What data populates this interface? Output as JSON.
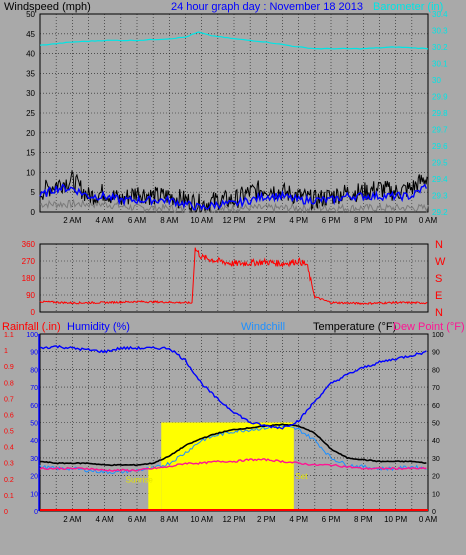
{
  "colors": {
    "background": "#a9a9a9",
    "plot_bg": "#a9a9a9",
    "grid": "#1a1a1a",
    "wind_speed": "#000000",
    "wind_avg": "#0000ff",
    "wind_gust_floor": "#7a7a7a",
    "barometer": "#00e5e5",
    "wind_dir": "#ff0000",
    "rain_axis": "#ff0000",
    "humidity": "#0000ff",
    "windchill": "#1e90ff",
    "temperature": "#000000",
    "dewpoint": "#ff1493",
    "sun_bar": "#ffff00",
    "sun_text": "#e6e600",
    "rain_line": "#ff0000"
  },
  "chart_data": [
    {
      "type": "line",
      "title": "24 hour graph day : November 18 2013",
      "left_axis_label": "Windspeed (mph)",
      "right_axis_label": "Barometer (in)",
      "left_ylim": [
        0,
        50
      ],
      "left_ticks": [
        "0",
        "5",
        "10",
        "15",
        "20",
        "25",
        "30",
        "35",
        "40",
        "45",
        "50"
      ],
      "right_ylim": [
        29.2,
        30.4
      ],
      "right_ticks": [
        "29.2",
        "29.3",
        "29.4",
        "29.5",
        "29.6",
        "29.7",
        "29.8",
        "29.9",
        "30",
        "30.1",
        "30.2",
        "30.3",
        "30.4"
      ],
      "x_tick_labels": [
        "2 AM",
        "4 AM",
        "6 AM",
        "8 AM",
        "10 AM",
        "12 PM",
        "2 PM",
        "4 PM",
        "6 PM",
        "8 PM",
        "10 PM",
        "0 AM"
      ],
      "x_hours_range": [
        0,
        24
      ],
      "series": [
        {
          "key": "wind_speed",
          "x": [
            0,
            1,
            2,
            3,
            4,
            5,
            6,
            7,
            8,
            9,
            10,
            11,
            12,
            13,
            14,
            15,
            16,
            17,
            18,
            19,
            20,
            21,
            22,
            23,
            24
          ],
          "values": [
            5,
            7,
            8,
            4,
            5,
            3,
            5,
            4,
            4,
            3,
            2,
            3,
            3,
            5,
            6,
            5,
            4,
            3,
            4,
            5,
            5,
            6,
            5,
            6,
            9
          ]
        },
        {
          "key": "wind_avg",
          "x": [
            0,
            1,
            2,
            3,
            4,
            5,
            6,
            7,
            8,
            9,
            10,
            11,
            12,
            13,
            14,
            15,
            16,
            17,
            18,
            19,
            20,
            21,
            22,
            23,
            24
          ],
          "values": [
            4,
            6,
            6,
            4,
            4,
            3,
            3,
            3,
            3,
            2,
            1,
            2,
            2,
            3,
            4,
            4,
            3,
            3,
            3,
            4,
            4,
            4,
            4,
            4,
            7
          ]
        },
        {
          "key": "wind_gust_floor",
          "x": [
            0,
            2,
            4,
            6,
            8,
            10,
            12,
            14,
            16,
            18,
            20,
            22,
            24
          ],
          "values": [
            2,
            2,
            2,
            1,
            1,
            0,
            1,
            1,
            1,
            1,
            1,
            1,
            1
          ]
        },
        {
          "key": "barometer",
          "x": [
            0,
            2,
            4,
            6,
            8,
            9,
            9.8,
            10.5,
            12,
            14,
            16,
            17,
            18,
            20,
            22,
            24
          ],
          "values": [
            30.21,
            30.23,
            30.24,
            30.24,
            30.25,
            30.26,
            30.29,
            30.27,
            30.25,
            30.23,
            30.2,
            30.19,
            30.19,
            30.19,
            30.2,
            30.19
          ]
        }
      ]
    },
    {
      "type": "scatter",
      "left_ylim": [
        0,
        360
      ],
      "left_ticks": [
        "0",
        "90",
        "180",
        "270",
        "360"
      ],
      "right_ticks": [
        "N",
        "E",
        "S",
        "W",
        "N"
      ],
      "x_tick_labels": [
        "2 AM",
        "4 AM",
        "6 AM",
        "8 AM",
        "10 AM",
        "12 PM",
        "2 PM",
        "4 PM",
        "6 PM",
        "8 PM",
        "10 PM",
        "0 AM"
      ],
      "series": [
        {
          "key": "wind_dir",
          "x": [
            0,
            2,
            4,
            6,
            8,
            9.4,
            9.6,
            10,
            11,
            12,
            13,
            14,
            15,
            16,
            16.5,
            17,
            18,
            20,
            22,
            24
          ],
          "values": [
            55,
            48,
            50,
            55,
            52,
            48,
            335,
            290,
            270,
            255,
            260,
            265,
            255,
            270,
            250,
            80,
            50,
            45,
            50,
            48
          ]
        }
      ]
    },
    {
      "type": "line",
      "labels": {
        "rainfall": "Rainfall (.in)",
        "humidity": "Humidity (%)",
        "windchill": "Windchill",
        "temperature": "Temperature (°F)",
        "dewpoint": "Dew Point (°F)",
        "sunrise": "Sunrise",
        "sunset": "Set"
      },
      "rain_ticks": [
        "0",
        "0.1",
        "0.2",
        "0.3",
        "0.4",
        "0.5",
        "0.6",
        "0.7",
        "0.8",
        "0.9",
        "1",
        "1.1"
      ],
      "humidity_ticks": [
        "0",
        "10",
        "20",
        "30",
        "40",
        "50",
        "60",
        "70",
        "80",
        "90",
        "100"
      ],
      "temp_ticks": [
        "0",
        "10",
        "20",
        "30",
        "40",
        "50",
        "60",
        "70",
        "80",
        "90",
        "100"
      ],
      "temp_ylim": [
        0,
        100
      ],
      "x_tick_labels": [
        "2 AM",
        "4 AM",
        "6 AM",
        "8 AM",
        "10 AM",
        "12 PM",
        "2 PM",
        "4 PM",
        "6 PM",
        "8 PM",
        "10 PM",
        "0 AM"
      ],
      "sun_bar": [
        {
          "x0": 6.7,
          "x1": 7.5,
          "level": 25
        },
        {
          "x0": 7.5,
          "x1": 15.7,
          "level": 50
        }
      ],
      "series": [
        {
          "key": "humidity",
          "x": [
            0,
            1,
            2,
            3,
            4,
            5,
            6,
            7,
            8,
            9,
            10,
            11,
            12,
            13,
            14,
            15,
            16,
            17,
            18,
            19,
            20,
            21,
            22,
            23,
            24
          ],
          "values": [
            92,
            93,
            92,
            91,
            90,
            92,
            92,
            92,
            92,
            85,
            72,
            63,
            56,
            50,
            48,
            47,
            51,
            62,
            72,
            77,
            81,
            84,
            86,
            88,
            90
          ]
        },
        {
          "key": "temperature",
          "x": [
            0,
            1,
            2,
            3,
            4,
            5,
            6,
            7,
            8,
            9,
            10,
            11,
            12,
            13,
            14,
            15,
            16,
            17,
            18,
            19,
            20,
            21,
            22,
            23,
            24
          ],
          "values": [
            28,
            27,
            27,
            27,
            26,
            26,
            26,
            27,
            31,
            37,
            41,
            44,
            46,
            47,
            48,
            49,
            48,
            44,
            35,
            30,
            29,
            28,
            28,
            28,
            27
          ]
        },
        {
          "key": "dewpoint",
          "x": [
            0,
            1,
            2,
            3,
            4,
            5,
            6,
            7,
            8,
            9,
            10,
            11,
            12,
            13,
            14,
            15,
            16,
            17,
            18,
            19,
            20,
            21,
            22,
            23,
            24
          ],
          "values": [
            24,
            24,
            24,
            24,
            23,
            23,
            23,
            24,
            25,
            27,
            27,
            28,
            28,
            29,
            29,
            28,
            27,
            26,
            26,
            25,
            24,
            24,
            24,
            24,
            24
          ]
        },
        {
          "key": "windchill",
          "x": [
            0,
            1,
            2,
            3,
            4,
            5,
            6,
            7,
            8,
            9,
            10,
            11,
            12,
            13,
            14,
            15,
            16,
            17,
            18,
            19,
            20,
            21,
            22,
            23,
            24
          ],
          "values": [
            25,
            24,
            24,
            23,
            22,
            22,
            23,
            24,
            27,
            33,
            40,
            43,
            45,
            46,
            47,
            48,
            46,
            40,
            30,
            26,
            25,
            24,
            24,
            25,
            24
          ]
        }
      ]
    }
  ]
}
